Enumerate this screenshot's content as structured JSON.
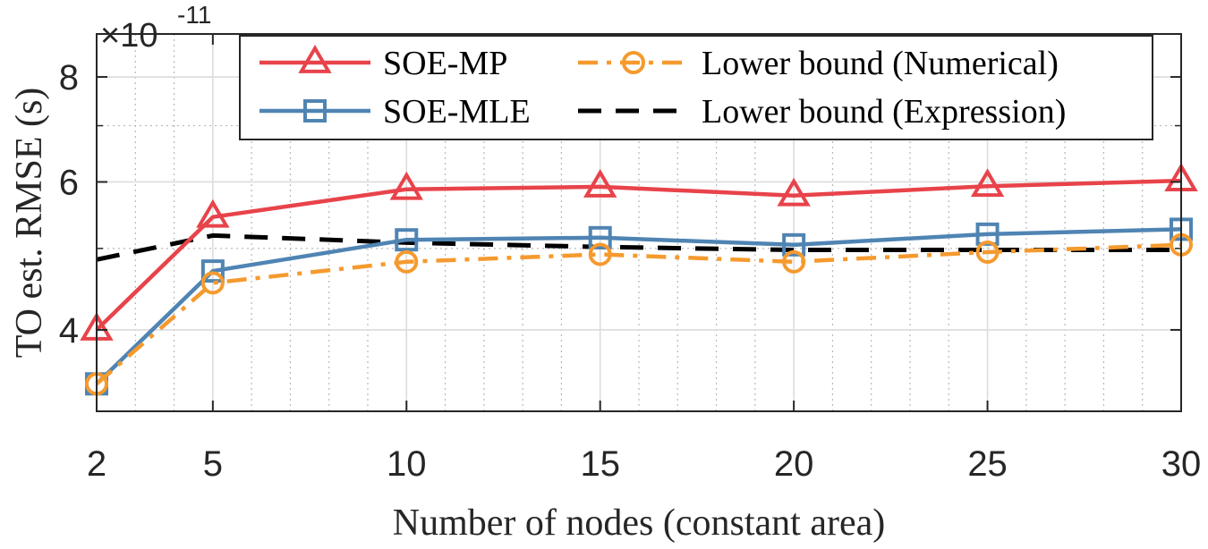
{
  "chart_data": {
    "type": "line",
    "xlabel": "Number of nodes (constant area)",
    "ylabel": "TO est. RMSE (s)",
    "x": [
      2,
      5,
      10,
      15,
      20,
      25,
      30
    ],
    "x_ticks": [
      2,
      5,
      10,
      15,
      20,
      25,
      30
    ],
    "xlim": [
      2,
      30
    ],
    "y_scale": "log",
    "y_multiplier": {
      "base": "×10",
      "exponent": "-11"
    },
    "y_ticks": [
      4,
      6,
      8
    ],
    "ylim": [
      3.2,
      9
    ],
    "grid": true,
    "legend_position": "top-right",
    "series": [
      {
        "name": "SOE-MP",
        "values": [
          4.0,
          5.45,
          5.88,
          5.92,
          5.78,
          5.93,
          6.02
        ],
        "color": "#e8434a",
        "marker": "triangle",
        "line": "solid"
      },
      {
        "name": "SOE-MLE",
        "values": [
          3.45,
          4.7,
          5.12,
          5.15,
          5.05,
          5.2,
          5.27
        ],
        "color": "#4f84b3",
        "marker": "square",
        "line": "solid"
      },
      {
        "name": "Lower bound (Numerical)",
        "values": [
          3.45,
          4.55,
          4.82,
          4.92,
          4.82,
          4.95,
          5.05
        ],
        "color": "#f59a2e",
        "marker": "circle",
        "line": "dashdot"
      },
      {
        "name": "Lower bound (Expression)",
        "values": [
          4.85,
          5.18,
          5.08,
          5.02,
          4.98,
          4.98,
          4.98
        ],
        "color": "#000000",
        "marker": "none",
        "line": "dashed"
      }
    ]
  }
}
